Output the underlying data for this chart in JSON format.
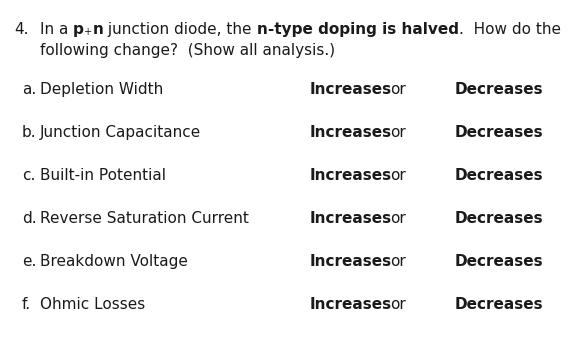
{
  "background_color": "#ffffff",
  "fig_width": 5.83,
  "fig_height": 3.64,
  "dpi": 100,
  "text_color": "#1a1a1a",
  "fontsize": 11.0,
  "rows": [
    {
      "label": "a.",
      "item": "Depletion Width"
    },
    {
      "label": "b.",
      "item": "Junction Capacitance"
    },
    {
      "label": "c.",
      "item": "Built-in Potential"
    },
    {
      "label": "d.",
      "item": "Reverse Saturation Current"
    },
    {
      "label": "e.",
      "item": "Breakdown Voltage"
    },
    {
      "label": "f.",
      "item": "Ohmic Losses"
    }
  ]
}
